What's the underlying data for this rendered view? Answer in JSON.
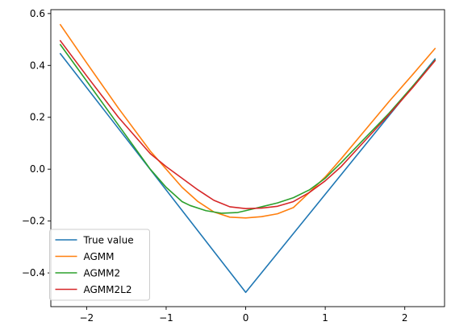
{
  "chart_data": {
    "type": "line",
    "title": "",
    "xlabel": "",
    "ylabel": "",
    "xlim": [
      -2.45,
      2.5
    ],
    "ylim": [
      -0.53,
      0.615
    ],
    "xticks": [
      -2,
      -1,
      0,
      1,
      2
    ],
    "xtick_labels": [
      "−2",
      "−1",
      "0",
      "1",
      "2"
    ],
    "yticks": [
      -0.4,
      -0.2,
      0.0,
      0.2,
      0.4,
      0.6
    ],
    "ytick_labels": [
      "−0.4",
      "−0.2",
      "0.0",
      "0.2",
      "0.4",
      "0.6"
    ],
    "grid": false,
    "legend_position": "lower-left",
    "series": [
      {
        "name": "True value",
        "color": "#1f77b4",
        "x": [
          -2.33,
          0.0,
          2.38
        ],
        "y": [
          0.445,
          -0.475,
          0.425
        ]
      },
      {
        "name": "AGMM",
        "color": "#ff7f0e",
        "x": [
          -2.33,
          -2.0,
          -1.6,
          -1.2,
          -1.0,
          -0.8,
          -0.6,
          -0.4,
          -0.2,
          0.0,
          0.2,
          0.4,
          0.6,
          0.8,
          1.0,
          1.2,
          1.5,
          1.8,
          2.1,
          2.38
        ],
        "y": [
          0.557,
          0.41,
          0.235,
          0.07,
          0.0,
          -0.07,
          -0.125,
          -0.165,
          -0.185,
          -0.188,
          -0.183,
          -0.172,
          -0.148,
          -0.09,
          -0.03,
          0.04,
          0.15,
          0.26,
          0.365,
          0.465
        ]
      },
      {
        "name": "AGMM2",
        "color": "#2ca02c",
        "x": [
          -2.33,
          -2.0,
          -1.6,
          -1.2,
          -1.0,
          -0.8,
          -0.7,
          -0.5,
          -0.3,
          -0.1,
          0.0,
          0.2,
          0.4,
          0.6,
          0.8,
          1.0,
          1.2,
          1.5,
          1.8,
          2.1,
          2.38
        ],
        "y": [
          0.48,
          0.34,
          0.17,
          0.0,
          -0.07,
          -0.125,
          -0.14,
          -0.16,
          -0.17,
          -0.167,
          -0.16,
          -0.145,
          -0.13,
          -0.11,
          -0.08,
          -0.035,
          0.025,
          0.12,
          0.215,
          0.32,
          0.42
        ]
      },
      {
        "name": "AGMM2L2",
        "color": "#d62728",
        "x": [
          -2.33,
          -2.0,
          -1.6,
          -1.2,
          -1.0,
          -0.8,
          -0.6,
          -0.4,
          -0.2,
          0.0,
          0.2,
          0.4,
          0.6,
          0.8,
          1.0,
          1.2,
          1.5,
          1.8,
          2.1,
          2.38
        ],
        "y": [
          0.495,
          0.36,
          0.2,
          0.06,
          0.01,
          -0.035,
          -0.08,
          -0.12,
          -0.145,
          -0.152,
          -0.15,
          -0.143,
          -0.125,
          -0.09,
          -0.045,
          0.01,
          0.11,
          0.21,
          0.315,
          0.418
        ]
      }
    ]
  }
}
